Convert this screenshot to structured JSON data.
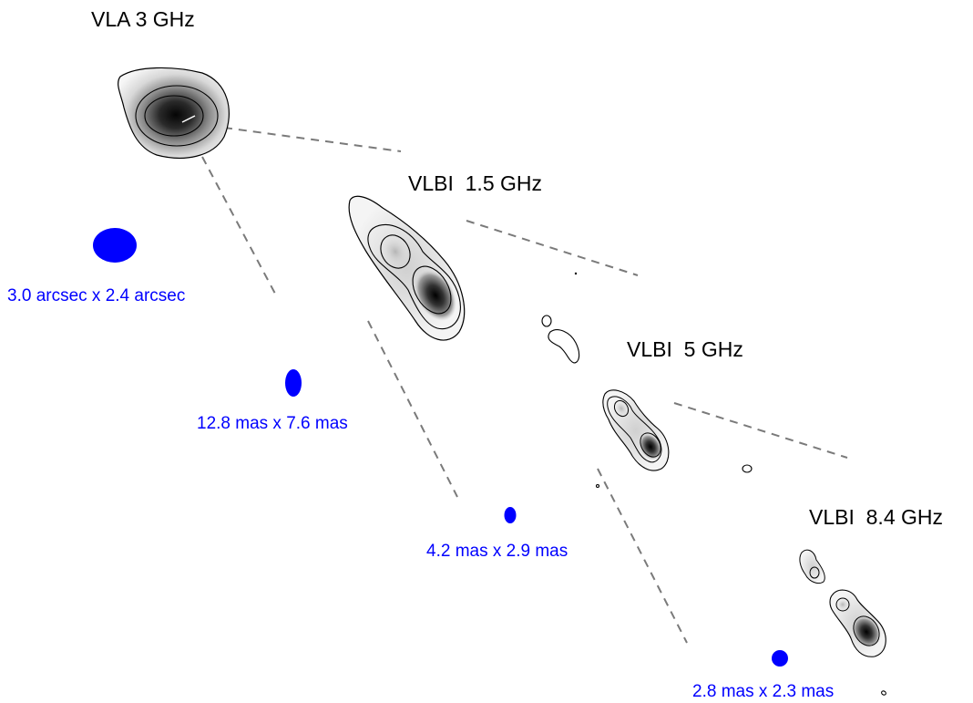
{
  "colors": {
    "beam": "#0000ff",
    "connector": "#7a7a7a",
    "contour": "#000000",
    "text": "#000000"
  },
  "panels": [
    {
      "title": "VLA 3 GHz",
      "beam_label": "3.0 arcsec x 2.4 arcsec"
    },
    {
      "title": "VLBI  1.5 GHz",
      "beam_label": "12.8 mas x 7.6 mas"
    },
    {
      "title": "VLBI  5 GHz",
      "beam_label": "4.2 mas x 2.9 mas"
    },
    {
      "title": "VLBI  8.4 GHz",
      "beam_label": "2.8 mas x 2.3 mas"
    }
  ]
}
